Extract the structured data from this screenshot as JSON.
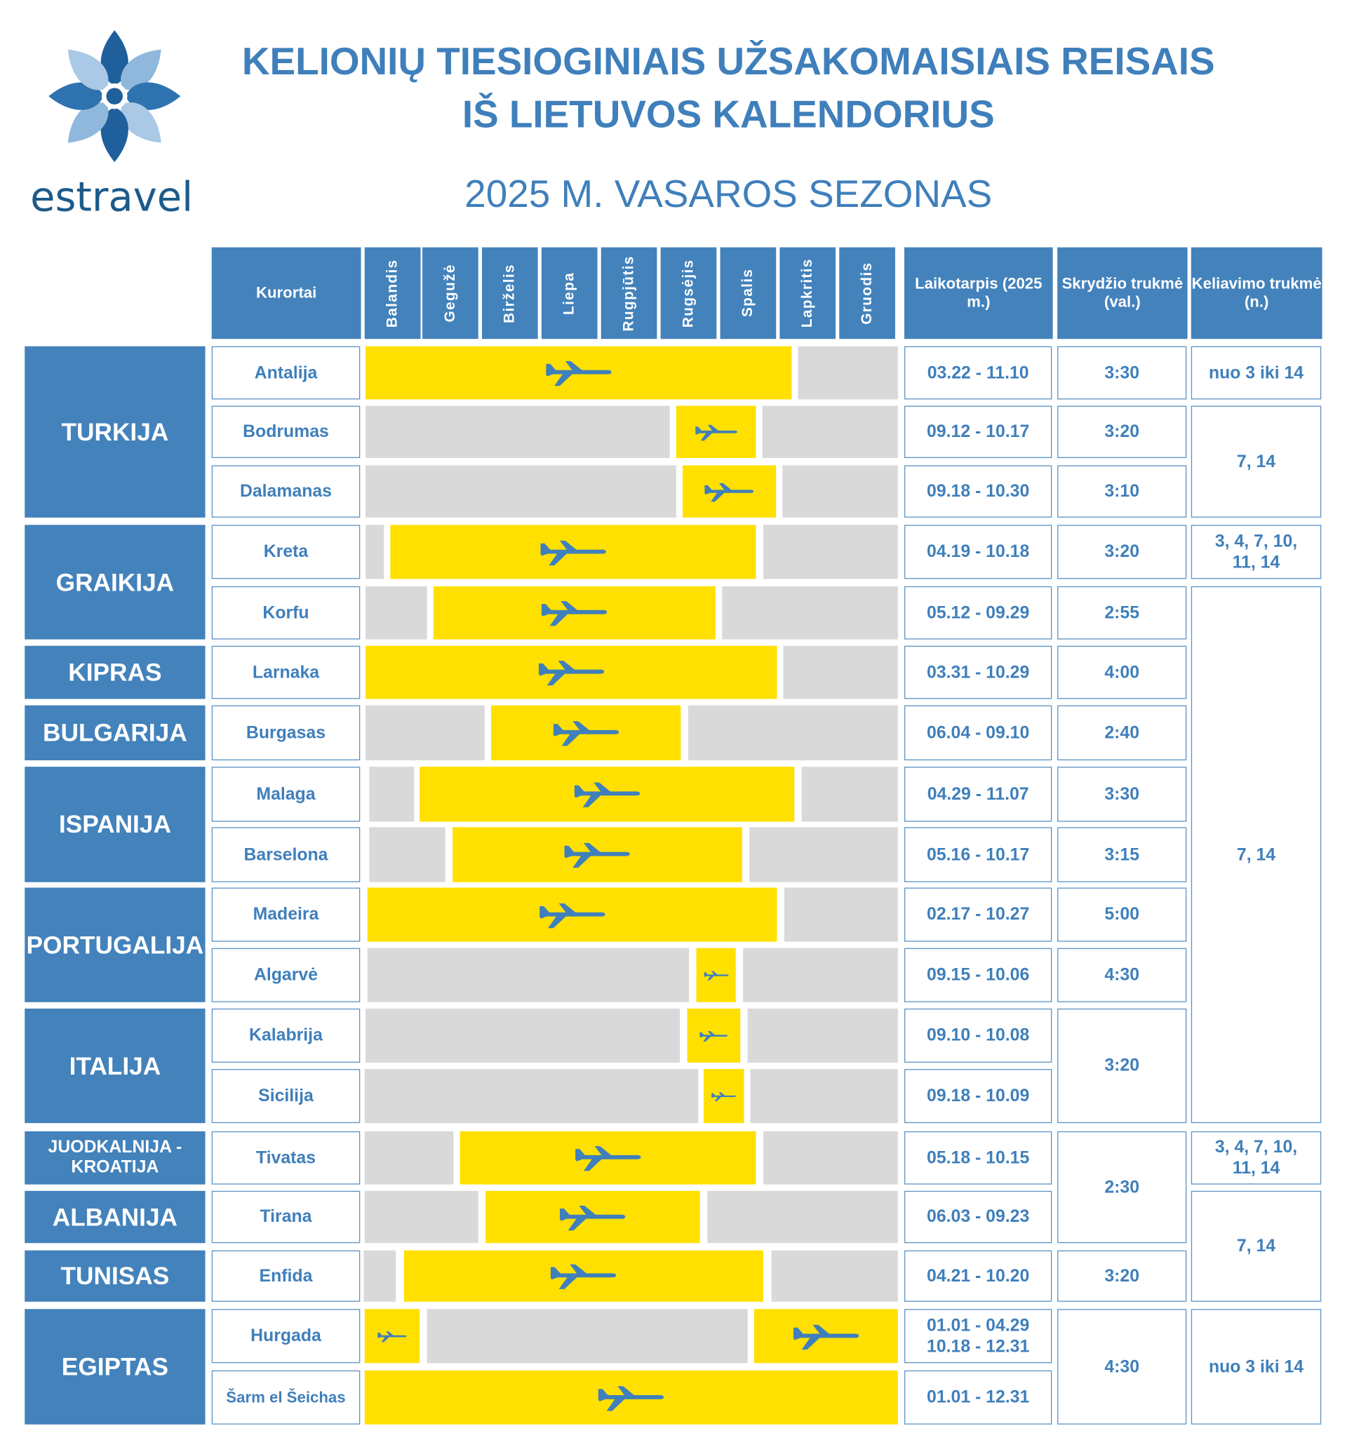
{
  "title_line1": "KELIONIŲ TIESIOGINIAIS UŽSAKOMAISIAIS REISAIS",
  "title_line2": "IŠ LIETUVOS KALENDORIUS",
  "subtitle": "2025 M. VASAROS SEZONAS",
  "brand": "estravel",
  "colors": {
    "header_blue": "#4382bb",
    "text_blue": "#3f7fbb",
    "flight_yellow": "#ffe000",
    "inactive_gray": "#d9d9d9"
  },
  "headers": {
    "resorts": "Kurortai",
    "months": [
      "Balandis",
      "Gegužė",
      "Birželis",
      "Liepa",
      "Rugpjūtis",
      "Rugsėjis",
      "Spalis",
      "Lapkritis",
      "Gruodis"
    ],
    "period": "Laikotarpis (2025 m.)",
    "flight_duration": "Skrydžio trukmė (val.)",
    "trip_duration": "Keliavimo trukmė (n.)"
  },
  "countries": [
    "TURKIJA",
    "GRAIKIJA",
    "KIPRAS",
    "BULGARIJA",
    "ISPANIJA",
    "PORTUGALIJA",
    "ITALIJA",
    "JUODKALNIJA - KROATIJA",
    "ALBANIJA",
    "TUNISAS",
    "EGIPTAS"
  ],
  "rows": [
    {
      "resort": "Antalija",
      "period": "03.22 -  11.10"
    },
    {
      "resort": "Bodrumas",
      "period": "09.12 - 10.17"
    },
    {
      "resort": "Dalamanas",
      "period": "09.18 - 10.30"
    },
    {
      "resort": "Kreta",
      "period": "04.19 - 10.18"
    },
    {
      "resort": "Korfu",
      "period": "05.12 - 09.29"
    },
    {
      "resort": "Larnaka",
      "period": "03.31 - 10.29"
    },
    {
      "resort": "Burgasas",
      "period": "06.04 - 09.10"
    },
    {
      "resort": "Malaga",
      "period": "04.29 - 11.07"
    },
    {
      "resort": "Barselona",
      "period": "05.16 - 10.17"
    },
    {
      "resort": "Madeira",
      "period": "02.17 - 10.27"
    },
    {
      "resort": "Algarvė",
      "period": "09.15 - 10.06"
    },
    {
      "resort": "Kalabrija",
      "period": "09.10 - 10.08"
    },
    {
      "resort": "Sicilija",
      "period": "09.18 - 10.09"
    },
    {
      "resort": "Tivatas",
      "period": "05.18 - 10.15"
    },
    {
      "resort": "Tirana",
      "period": "06.03 - 09.23"
    },
    {
      "resort": "Enfida",
      "period": "04.21 - 10.20"
    },
    {
      "resort": "Hurgada",
      "period": "01.01 - 04.29\n10.18 - 12.31"
    },
    {
      "resort": "Šarm el Šeichas",
      "period": "01.01 - 12.31"
    }
  ],
  "flight_durations": [
    "3:30",
    "3:20",
    "3:10",
    "3:20",
    "2:55",
    "4:00",
    "2:40",
    "3:30",
    "3:15",
    "5:00",
    "4:30",
    "3:20",
    "2:30",
    "3:20",
    "4:30"
  ],
  "trip_durations": [
    "nuo 3 iki 14",
    "7, 14",
    "3, 4, 7, 10, 11, 14",
    "7, 14",
    "3, 4, 7, 10, 11, 14",
    "7, 14",
    "nuo 3 iki 14"
  ]
}
